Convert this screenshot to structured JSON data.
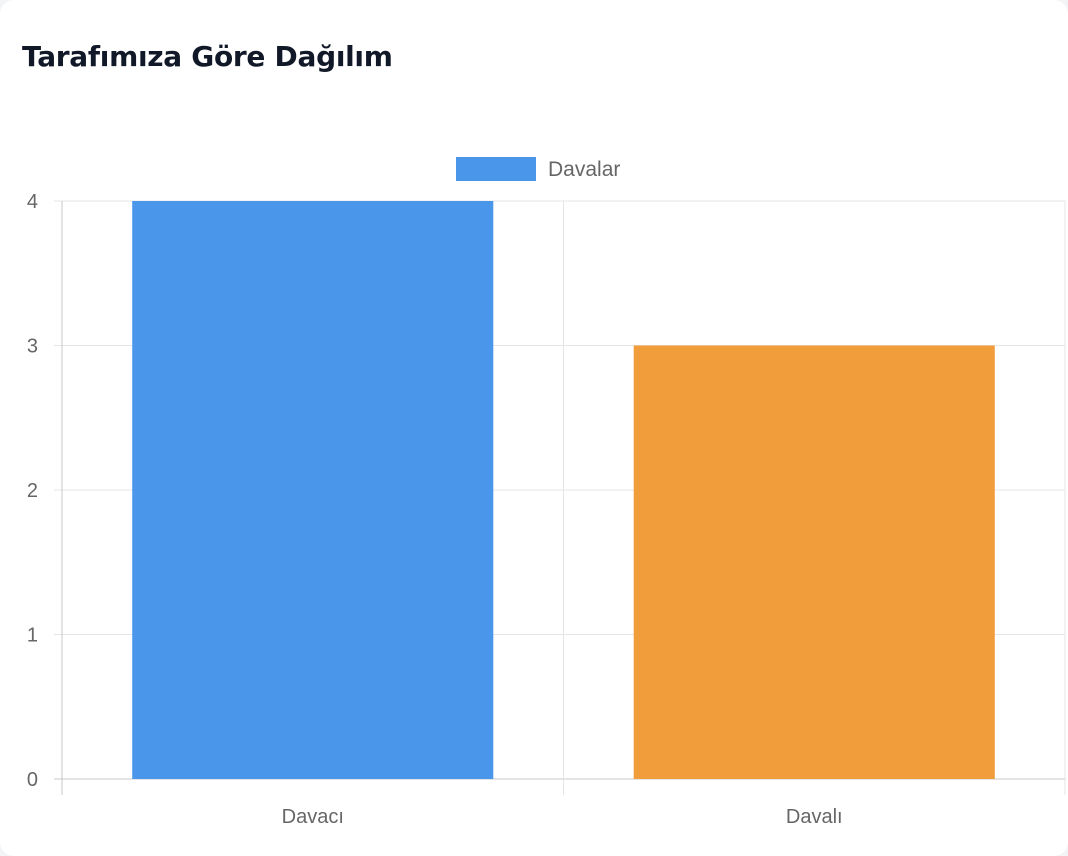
{
  "card": {
    "title": "Tarafımıza Göre Dağılım"
  },
  "chart_data": {
    "type": "bar",
    "title": "",
    "xlabel": "",
    "ylabel": "",
    "categories": [
      "Davacı",
      "Davalı"
    ],
    "series": [
      {
        "name": "Davalar",
        "values": [
          4,
          3
        ],
        "colors": [
          "#4a96ea",
          "#f19d3c"
        ]
      }
    ],
    "ylim": [
      0,
      4
    ],
    "yticks": [
      0,
      1,
      2,
      3,
      4
    ],
    "grid": true,
    "legend": "top-center"
  }
}
